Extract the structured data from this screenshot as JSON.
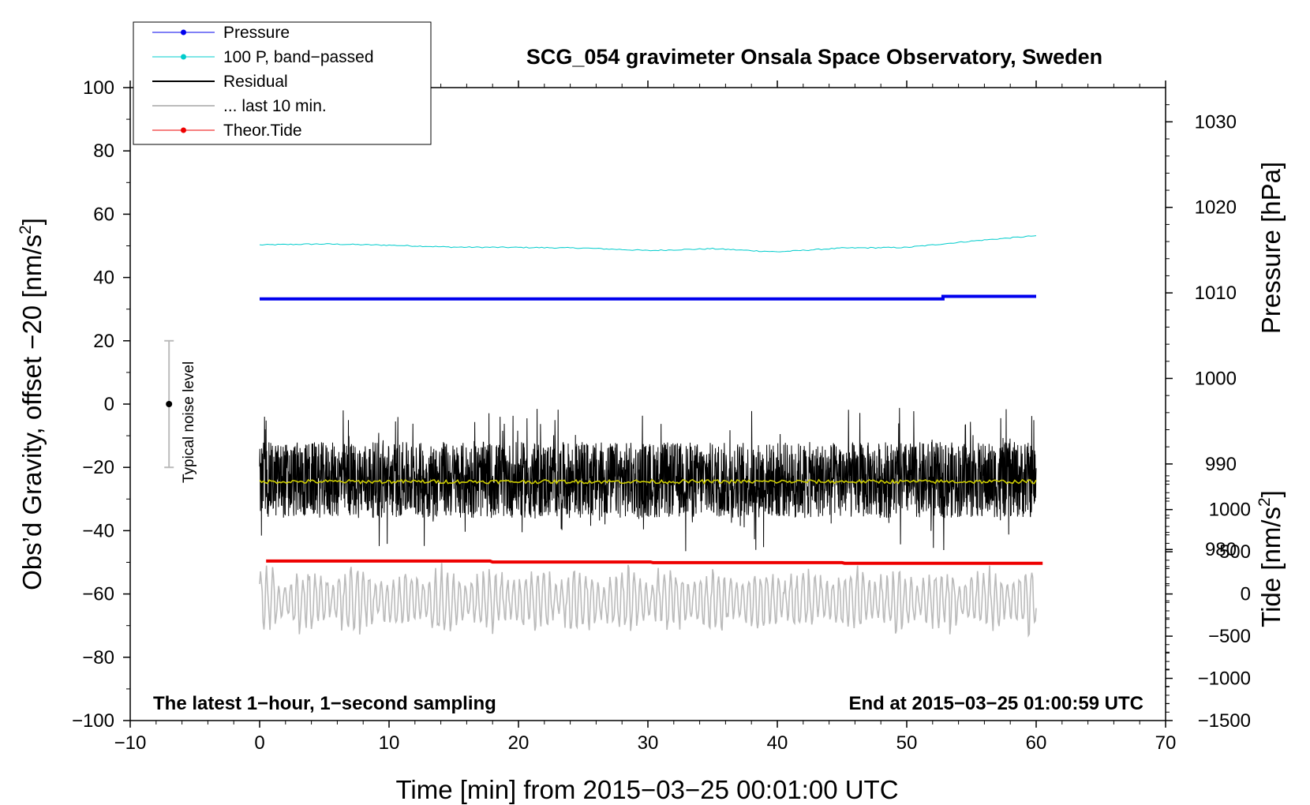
{
  "chart_data": {
    "type": "line",
    "title": "SCG_054 gravimeter Onsala Space Observatory, Sweden",
    "xlabel": "Time [min] from 2015−03−25 00:01:00 UTC",
    "ylabel_left_pre": "Obs’d Gravity, offset −20 [nm/s",
    "ylabel_left_post": "]",
    "ylabel_right_pressure": "Pressure [hPa]",
    "ylabel_right_tide_pre": "Tide [nm/s",
    "ylabel_right_tide_post": "]",
    "superscript": "2",
    "xlim": [
      -10,
      70
    ],
    "ylim_left": [
      -100,
      100
    ],
    "ylim_pressure": [
      960,
      1034
    ],
    "ylim_tide": [
      -1500,
      6000
    ],
    "x_ticks": [
      "−10",
      "0",
      "10",
      "20",
      "30",
      "40",
      "50",
      "60",
      "70"
    ],
    "x_tick_values": [
      -10,
      0,
      10,
      20,
      30,
      40,
      50,
      60,
      70
    ],
    "y_left_ticks": [
      "100",
      "80",
      "60",
      "40",
      "20",
      "0",
      "−20",
      "−40",
      "−60",
      "−80",
      "−100"
    ],
    "y_left_tick_values": [
      100,
      80,
      60,
      40,
      20,
      0,
      -20,
      -40,
      -60,
      -80,
      -100
    ],
    "y_pressure_ticks": [
      "1030",
      "1020",
      "1010",
      "1000",
      "990",
      "980"
    ],
    "y_pressure_tick_values": [
      1030,
      1020,
      1010,
      1000,
      990,
      980
    ],
    "y_tide_ticks": [
      "1000",
      "500",
      "0",
      "−500",
      "−1000",
      "−1500"
    ],
    "y_tide_tick_values": [
      1000,
      500,
      0,
      -500,
      -1000,
      -1500
    ],
    "legend": [
      {
        "label": "Pressure",
        "color": "#0000ee",
        "marker": true
      },
      {
        "label": "100 P, band−passed",
        "color": "#00cccc",
        "marker": true
      },
      {
        "label": "Residual",
        "color": "#000000",
        "marker": false
      },
      {
        "label": "... last 10 min.",
        "color": "#bbbbbb",
        "marker": false
      },
      {
        "label": "Theor.Tide",
        "color": "#ee0000",
        "marker": true
      }
    ],
    "series": [
      {
        "name": "Pressure",
        "color": "#0000ee",
        "x_range": [
          0,
          60
        ],
        "pressure_start": 1009.3,
        "pressure_end": 1009.6
      },
      {
        "name": "100 P, band−passed",
        "color": "#00cccc",
        "x": [
          0,
          5,
          10,
          15,
          20,
          25,
          30,
          35,
          40,
          45,
          50,
          55,
          60
        ],
        "y": [
          50.3,
          50.6,
          50.2,
          49.6,
          49.5,
          49.3,
          48.5,
          49.1,
          48.1,
          49.3,
          49.5,
          51.5,
          53.2
        ]
      },
      {
        "name": "Residual",
        "color": "#000000",
        "x_range": [
          0,
          60
        ],
        "mean": -24,
        "amplitude": 12
      },
      {
        "name": "Residual smoothed",
        "color": "#cccc00",
        "x_range": [
          0,
          60
        ],
        "mean": -24.5
      },
      {
        "name": "... last 10 min.",
        "color": "#bbbbbb",
        "x_range": [
          0,
          60
        ],
        "mean": -62,
        "amplitude": 9
      },
      {
        "name": "Theor.Tide",
        "color": "#ee0000",
        "x_range": [
          0.5,
          60.5
        ],
        "y_start": -49.6,
        "y_end": -50.3
      }
    ],
    "noise_bar": {
      "label": "Typical noise level",
      "x": -7,
      "center": 0,
      "low": -20,
      "high": 20
    },
    "annotation_left": "The latest 1−hour, 1−second sampling",
    "annotation_right": "End at 2015−03−25 01:00:59 UTC"
  }
}
